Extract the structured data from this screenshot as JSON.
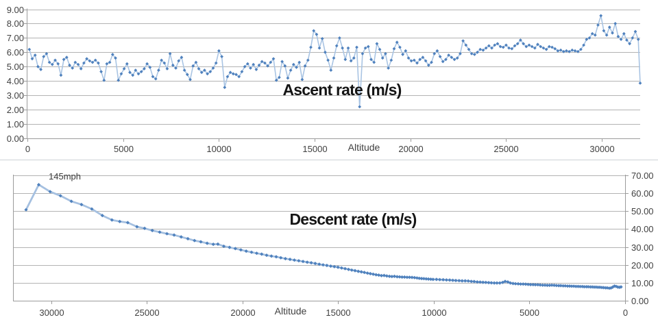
{
  "chart_data": [
    {
      "id": "ascent",
      "type": "line",
      "title": "Ascent rate (m/s)",
      "x_axis_label": "Altitude",
      "marker": "diamond",
      "legend": "none",
      "grid": "horizontal",
      "colors": {
        "marker": "#4f81bd",
        "line": "#a9c4e3",
        "grid": "#b3b3b3",
        "axis": "#9b9b9b",
        "tick_text": "#3f3f3f",
        "title_text": "#151515"
      },
      "x_reversed": false,
      "xlim": [
        0,
        32000
      ],
      "xticks": [
        0,
        5000,
        10000,
        15000,
        20000,
        25000,
        30000
      ],
      "xtick_labels": [
        "0",
        "5000",
        "10000",
        "15000",
        "20000",
        "25000",
        "30000"
      ],
      "ylim": [
        0,
        9
      ],
      "ytick_step": 1,
      "ytick_labels": [
        "0.00",
        "1.00",
        "2.00",
        "3.00",
        "4.00",
        "5.00",
        "6.00",
        "7.00",
        "8.00",
        "9.00"
      ],
      "y_axis_side": "left",
      "series": {
        "name": "Ascent rate",
        "x_start": 100,
        "x_step": 150,
        "values": [
          6.2,
          5.55,
          5.8,
          5.0,
          4.8,
          5.7,
          5.9,
          5.3,
          5.15,
          5.45,
          5.2,
          4.4,
          5.5,
          5.65,
          5.1,
          4.9,
          5.3,
          5.15,
          4.85,
          5.25,
          5.55,
          5.4,
          5.3,
          5.45,
          5.25,
          4.65,
          4.05,
          5.2,
          5.3,
          5.85,
          5.6,
          4.05,
          4.5,
          4.85,
          5.2,
          4.6,
          4.4,
          4.75,
          4.5,
          4.65,
          4.85,
          5.2,
          4.95,
          4.3,
          4.15,
          4.75,
          5.45,
          5.25,
          4.85,
          5.9,
          5.1,
          4.9,
          5.4,
          5.65,
          4.75,
          4.45,
          4.1,
          5.05,
          5.3,
          4.85,
          4.6,
          4.75,
          4.5,
          4.65,
          4.9,
          5.25,
          6.1,
          5.7,
          3.55,
          4.3,
          4.6,
          4.5,
          4.45,
          4.3,
          4.65,
          5.0,
          5.2,
          4.9,
          5.15,
          4.8,
          5.1,
          5.35,
          5.25,
          5.05,
          5.3,
          5.55,
          4.05,
          4.25,
          5.35,
          5.05,
          4.2,
          4.75,
          5.15,
          4.95,
          5.3,
          4.1,
          5.05,
          5.45,
          6.35,
          7.5,
          7.25,
          6.3,
          6.95,
          6.0,
          5.45,
          4.75,
          5.6,
          6.45,
          7.0,
          6.3,
          5.5,
          6.3,
          5.4,
          5.6,
          6.35,
          2.2,
          5.9,
          6.3,
          6.4,
          5.5,
          5.3,
          6.6,
          6.2,
          5.6,
          5.9,
          4.9,
          5.45,
          6.25,
          6.7,
          6.35,
          5.85,
          6.1,
          5.6,
          5.4,
          5.45,
          5.25,
          5.5,
          5.65,
          5.4,
          5.1,
          5.3,
          5.9,
          6.1,
          5.7,
          5.35,
          5.5,
          5.8,
          5.65,
          5.5,
          5.6,
          5.9,
          6.8,
          6.5,
          6.2,
          5.9,
          5.85,
          6.0,
          6.2,
          6.15,
          6.3,
          6.45,
          6.3,
          6.5,
          6.6,
          6.4,
          6.35,
          6.5,
          6.3,
          6.25,
          6.45,
          6.6,
          6.85,
          6.6,
          6.4,
          6.5,
          6.4,
          6.3,
          6.55,
          6.4,
          6.3,
          6.2,
          6.4,
          6.35,
          6.25,
          6.1,
          6.15,
          6.05,
          6.1,
          6.05,
          6.15,
          6.1,
          6.05,
          6.2,
          6.5,
          6.9,
          7.0,
          7.3,
          7.2,
          7.9,
          8.55,
          7.5,
          7.2,
          7.75,
          7.35,
          8.0,
          7.1,
          6.9,
          7.3,
          6.85,
          6.6,
          7.0,
          7.45,
          6.9
        ],
        "end_point": [
          32000,
          3.85
        ]
      }
    },
    {
      "id": "descent",
      "type": "line",
      "title": "Descent rate (m/s)",
      "x_axis_label": "Altitude",
      "annotation": {
        "text": "145mph",
        "x": 30655,
        "y": 64.8
      },
      "marker": "diamond",
      "legend": "none",
      "grid": "horizontal",
      "colors": {
        "marker": "#4f81bd",
        "line": "#a5c0e0",
        "grid": "#b3b3b3",
        "axis": "#9b9b9b",
        "tick_text": "#3f3f3f",
        "title_text": "#151515"
      },
      "x_reversed": true,
      "xlim": [
        0,
        32000
      ],
      "xticks": [
        30000,
        25000,
        20000,
        15000,
        10000,
        5000,
        0
      ],
      "xtick_labels": [
        "30000",
        "25000",
        "20000",
        "15000",
        "10000",
        "5000",
        "0"
      ],
      "ylim": [
        0,
        70
      ],
      "ytick_step": 10,
      "ytick_labels": [
        "0.00",
        "10.00",
        "20.00",
        "30.00",
        "40.00",
        "50.00",
        "60.00",
        "70.00"
      ],
      "y_axis_side": "right",
      "series": {
        "name": "Descent rate",
        "points": [
          [
            31320,
            50.8
          ],
          [
            30655,
            64.8
          ],
          [
            30060,
            60.9
          ],
          [
            29520,
            58.6
          ],
          [
            28950,
            55.5
          ],
          [
            28420,
            53.7
          ],
          [
            27880,
            51.2
          ],
          [
            27330,
            47.6
          ],
          [
            26830,
            45.1
          ],
          [
            26420,
            44.2
          ],
          [
            26000,
            43.6
          ],
          [
            25520,
            41.3
          ],
          [
            25120,
            40.4
          ],
          [
            24720,
            39.2
          ],
          [
            24330,
            38.3
          ],
          [
            23950,
            37.4
          ],
          [
            23580,
            36.7
          ],
          [
            23210,
            35.6
          ],
          [
            22860,
            34.6
          ],
          [
            22510,
            33.6
          ],
          [
            22180,
            32.9
          ],
          [
            21850,
            32.1
          ],
          [
            21530,
            31.5
          ],
          [
            21290,
            31.6
          ],
          [
            20980,
            30.4
          ],
          [
            20680,
            29.8
          ],
          [
            20380,
            29.1
          ],
          [
            20090,
            28.4
          ],
          [
            19810,
            27.7
          ],
          [
            19530,
            27.1
          ],
          [
            19260,
            26.5
          ],
          [
            19000,
            26.0
          ],
          [
            18740,
            25.4
          ],
          [
            18490,
            24.9
          ],
          [
            18240,
            24.5
          ],
          [
            18000,
            24.0
          ],
          [
            17760,
            23.5
          ],
          [
            17520,
            23.1
          ],
          [
            17290,
            22.7
          ],
          [
            17060,
            22.3
          ],
          [
            16840,
            21.9
          ],
          [
            16620,
            21.5
          ],
          [
            16410,
            21.2
          ],
          [
            16200,
            20.8
          ],
          [
            15990,
            20.4
          ],
          [
            15790,
            20.0
          ],
          [
            15590,
            19.7
          ],
          [
            15390,
            19.3
          ],
          [
            15200,
            19.0
          ],
          [
            15010,
            18.7
          ],
          [
            14820,
            18.3
          ],
          [
            14640,
            17.9
          ],
          [
            14460,
            17.5
          ],
          [
            14290,
            17.1
          ],
          [
            14120,
            16.8
          ],
          [
            13950,
            16.4
          ],
          [
            13790,
            16.1
          ],
          [
            13630,
            15.8
          ],
          [
            13470,
            15.4
          ],
          [
            13320,
            15.1
          ],
          [
            13170,
            14.8
          ],
          [
            13020,
            14.5
          ],
          [
            12880,
            14.3
          ],
          [
            12740,
            14.0
          ],
          [
            12600,
            14.1
          ],
          [
            12460,
            13.8
          ],
          [
            12320,
            13.6
          ],
          [
            12190,
            13.5
          ],
          [
            12060,
            13.6
          ],
          [
            11920,
            13.4
          ],
          [
            11790,
            13.3
          ],
          [
            11660,
            13.2
          ],
          [
            11530,
            13.2
          ],
          [
            11400,
            13.1
          ],
          [
            11270,
            13.1
          ],
          [
            11140,
            13.0
          ],
          [
            11010,
            12.9
          ],
          [
            10880,
            12.7
          ],
          [
            10760,
            12.5
          ],
          [
            10640,
            12.4
          ],
          [
            10520,
            12.3
          ],
          [
            10400,
            12.2
          ],
          [
            10280,
            12.1
          ],
          [
            10160,
            12.0
          ],
          [
            10040,
            11.9
          ],
          [
            9860,
            11.9
          ],
          [
            9690,
            11.8
          ],
          [
            9510,
            11.7
          ],
          [
            9340,
            11.6
          ],
          [
            9170,
            11.5
          ],
          [
            9010,
            11.4
          ],
          [
            8850,
            11.3
          ],
          [
            8680,
            11.2
          ],
          [
            8520,
            11.1
          ],
          [
            8360,
            11.1
          ],
          [
            8200,
            11.0
          ],
          [
            8040,
            10.8
          ],
          [
            7890,
            10.7
          ],
          [
            7730,
            10.5
          ],
          [
            7580,
            10.4
          ],
          [
            7430,
            10.3
          ],
          [
            7280,
            10.2
          ],
          [
            7130,
            10.1
          ],
          [
            6990,
            10.0
          ],
          [
            6840,
            9.9
          ],
          [
            6700,
            9.9
          ],
          [
            6550,
            9.9
          ],
          [
            6400,
            10.2
          ],
          [
            6270,
            10.8
          ],
          [
            6130,
            10.5
          ],
          [
            6000,
            9.9
          ],
          [
            5860,
            9.6
          ],
          [
            5730,
            9.5
          ],
          [
            5590,
            9.4
          ],
          [
            5460,
            9.3
          ],
          [
            5330,
            9.3
          ],
          [
            5200,
            9.2
          ],
          [
            5070,
            9.1
          ],
          [
            4940,
            9.0
          ],
          [
            4810,
            9.0
          ],
          [
            4690,
            8.9
          ],
          [
            4560,
            8.9
          ],
          [
            4440,
            8.8
          ],
          [
            4310,
            8.7
          ],
          [
            4190,
            8.7
          ],
          [
            4070,
            8.6
          ],
          [
            3950,
            8.6
          ],
          [
            3830,
            8.7
          ],
          [
            3710,
            8.6
          ],
          [
            3590,
            8.5
          ],
          [
            3470,
            8.4
          ],
          [
            3360,
            8.4
          ],
          [
            3240,
            8.3
          ],
          [
            3130,
            8.3
          ],
          [
            3010,
            8.2
          ],
          [
            2900,
            8.2
          ],
          [
            2790,
            8.1
          ],
          [
            2680,
            8.1
          ],
          [
            2570,
            8.0
          ],
          [
            2460,
            8.0
          ],
          [
            2350,
            7.9
          ],
          [
            2240,
            7.9
          ],
          [
            2140,
            7.8
          ],
          [
            2030,
            7.8
          ],
          [
            1930,
            7.8
          ],
          [
            1820,
            7.7
          ],
          [
            1720,
            7.7
          ],
          [
            1620,
            7.6
          ],
          [
            1520,
            7.6
          ],
          [
            1420,
            7.5
          ],
          [
            1320,
            7.5
          ],
          [
            1220,
            7.4
          ],
          [
            1120,
            7.3
          ],
          [
            1020,
            7.2
          ],
          [
            930,
            7.2
          ],
          [
            830,
            7.0
          ],
          [
            740,
            7.1
          ],
          [
            650,
            7.6
          ],
          [
            560,
            8.2
          ],
          [
            470,
            8.0
          ],
          [
            380,
            7.6
          ],
          [
            290,
            7.5
          ],
          [
            210,
            7.7
          ]
        ]
      }
    }
  ]
}
